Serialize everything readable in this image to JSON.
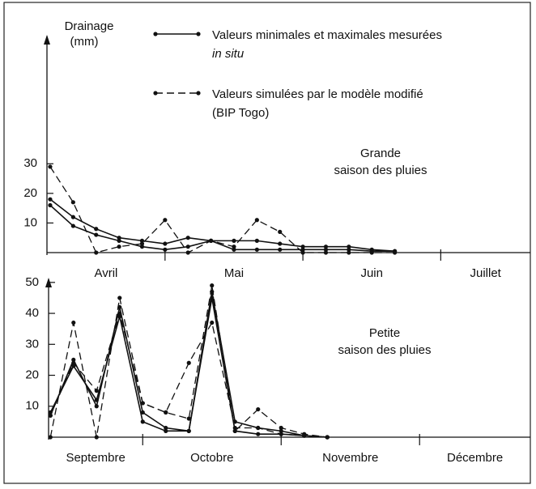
{
  "chart_data": [
    {
      "type": "line",
      "y_label": [
        "Drainage",
        "(mm)"
      ],
      "legend": [
        {
          "line1": "Valeurs minimales et maximales mesurées",
          "line2": "in situ",
          "dash": false
        },
        {
          "line1": "Valeurs simulées par le modèle modifié",
          "line2": "(BIP Togo)",
          "dash": true
        }
      ],
      "season_label": [
        "Grande",
        "saison des pluies"
      ],
      "x": [
        5,
        10,
        15,
        20,
        25,
        30,
        35,
        40,
        45,
        50,
        55,
        60,
        65,
        70,
        75,
        80
      ],
      "series": [
        {
          "dash": false,
          "values": [
            18,
            12,
            8,
            5,
            4,
            3,
            5,
            4,
            4,
            4,
            3,
            2,
            2,
            2,
            1,
            0.5
          ]
        },
        {
          "dash": false,
          "values": [
            16,
            9,
            6,
            4,
            2,
            1,
            2,
            4,
            1,
            1,
            1,
            1,
            1,
            1,
            0.5,
            0.5
          ]
        },
        {
          "dash": true,
          "values": [
            29,
            17,
            0,
            2,
            3,
            11,
            0,
            4,
            2,
            11,
            7,
            0,
            0,
            0,
            0,
            0
          ]
        }
      ],
      "xlim": [
        4.3,
        109.5
      ],
      "xticks": [
        30,
        60,
        90
      ],
      "months": [
        "Avril",
        "Mai",
        "Juin",
        "Juillet"
      ],
      "ylim": [
        0,
        73
      ],
      "yticks": [
        10,
        20,
        30
      ]
    },
    {
      "type": "line",
      "season_label": [
        "Petite",
        "saison des pluies"
      ],
      "x": [
        10,
        15,
        20,
        25,
        30,
        35,
        40,
        45,
        50,
        55,
        60,
        65,
        70
      ],
      "series": [
        {
          "dash": false,
          "values": [
            7,
            25,
            10,
            42,
            8,
            3,
            2,
            47,
            5,
            3,
            2,
            0.5,
            0
          ]
        },
        {
          "dash": false,
          "values": [
            8,
            23,
            12,
            39,
            5,
            2,
            2,
            45,
            2,
            1,
            1,
            0.5,
            0
          ]
        },
        {
          "dash": true,
          "values": [
            0,
            37,
            0,
            45,
            11,
            8,
            6,
            49,
            2,
            9,
            3,
            1,
            0
          ]
        },
        {
          "dash": true,
          "values": [
            7,
            24,
            15,
            40,
            11,
            8,
            24,
            37,
            3,
            3,
            1,
            0.5,
            0
          ]
        }
      ],
      "xlim": [
        9.6,
        114
      ],
      "xticks": [
        30,
        60,
        90
      ],
      "months": [
        "Septembre",
        "Octobre",
        "Novembre",
        "Décembre"
      ],
      "ylim": [
        0,
        51
      ],
      "yticks": [
        10,
        20,
        30,
        40,
        50
      ]
    }
  ]
}
